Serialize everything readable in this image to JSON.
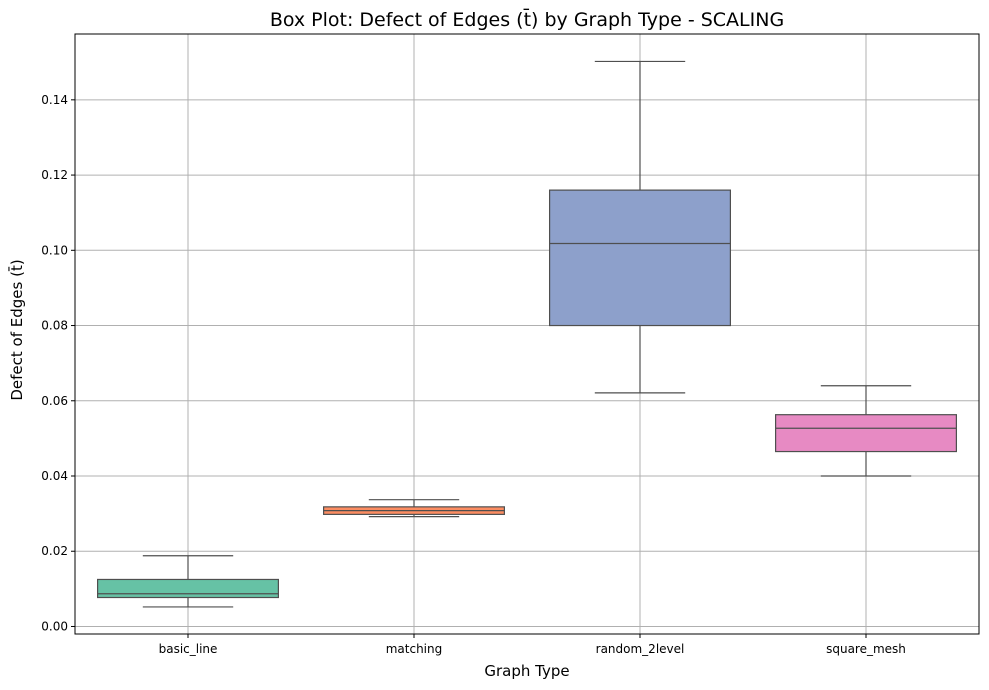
{
  "chart_data": {
    "type": "box",
    "title": "Box Plot: Defect of Edges (t̄) by Graph Type - SCALING",
    "xlabel": "Graph Type",
    "ylabel": "Defect of Edges (t̄)",
    "ylim": [
      -0.002,
      0.1575
    ],
    "yticks": [
      0.0,
      0.02,
      0.04,
      0.06,
      0.08,
      0.1,
      0.12,
      0.14
    ],
    "ytick_labels": [
      "0.00",
      "0.02",
      "0.04",
      "0.06",
      "0.08",
      "0.10",
      "0.12",
      "0.14"
    ],
    "grid": true,
    "categories": [
      "basic_line",
      "matching",
      "random_2level",
      "square_mesh"
    ],
    "boxes": [
      {
        "category": "basic_line",
        "whisker_low": 0.0052,
        "q1": 0.0077,
        "median": 0.0087,
        "q3": 0.0125,
        "whisker_high": 0.0188,
        "color": "#66c2a5"
      },
      {
        "category": "matching",
        "whisker_low": 0.0292,
        "q1": 0.0298,
        "median": 0.0308,
        "q3": 0.0318,
        "whisker_high": 0.0337,
        "color": "#fc8d62"
      },
      {
        "category": "random_2level",
        "whisker_low": 0.0621,
        "q1": 0.08,
        "median": 0.1018,
        "q3": 0.116,
        "whisker_high": 0.1502,
        "color": "#8da0cb"
      },
      {
        "category": "square_mesh",
        "whisker_low": 0.04,
        "q1": 0.0465,
        "median": 0.0527,
        "q3": 0.0563,
        "whisker_high": 0.064,
        "color": "#e78ac3"
      }
    ]
  }
}
